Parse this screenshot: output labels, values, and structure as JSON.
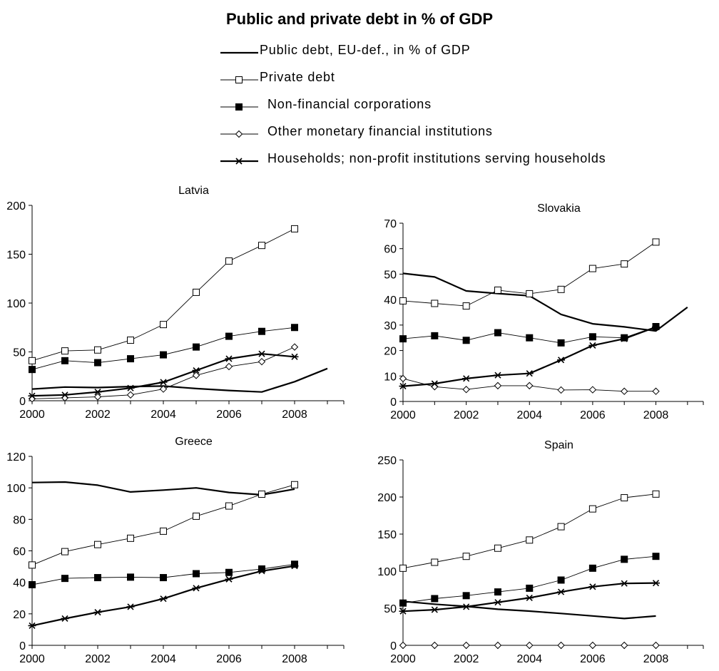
{
  "title": "Public and private debt in % of GDP",
  "legend": [
    {
      "key": "public",
      "label": "Public debt, EU-def.,  in % of GDP",
      "marker": "none"
    },
    {
      "key": "private",
      "label": "Private debt",
      "marker": "open-square"
    },
    {
      "key": "nfc",
      "label": "Non-financial corporations",
      "marker": "filled-square"
    },
    {
      "key": "omfi",
      "label": "Other monetary financial institutions",
      "marker": "open-diamond"
    },
    {
      "key": "hh",
      "label": "Households; non-profit institutions serving households",
      "marker": "star"
    }
  ],
  "colors": {
    "line": "#000000",
    "background": "#ffffff"
  },
  "chart_data": [
    {
      "type": "line",
      "title": "Latvia",
      "xlabel": "",
      "ylabel": "",
      "xlim": [
        2000,
        2009.5
      ],
      "ylim": [
        0,
        200
      ],
      "yticks": [
        0,
        50,
        100,
        150,
        200
      ],
      "xticks": [
        2000,
        2002,
        2004,
        2006,
        2008
      ],
      "grid": false,
      "series": [
        {
          "key": "public",
          "x": [
            2000,
            2001,
            2002,
            2003,
            2004,
            2005,
            2006,
            2007,
            2008,
            2009
          ],
          "values": [
            12,
            14,
            13.5,
            14.5,
            15,
            12.5,
            10.5,
            9,
            19.5,
            33
          ]
        },
        {
          "key": "private",
          "x": [
            2000,
            2001,
            2002,
            2003,
            2004,
            2005,
            2006,
            2007,
            2008
          ],
          "values": [
            41,
            51,
            52,
            62,
            78,
            111,
            143,
            159,
            176
          ]
        },
        {
          "key": "nfc",
          "x": [
            2000,
            2001,
            2002,
            2003,
            2004,
            2005,
            2006,
            2007,
            2008
          ],
          "values": [
            32,
            41,
            39,
            43,
            47,
            55,
            66,
            71,
            75
          ]
        },
        {
          "key": "omfi",
          "x": [
            2000,
            2001,
            2002,
            2003,
            2004,
            2005,
            2006,
            2007,
            2008
          ],
          "values": [
            2,
            3,
            4,
            6,
            12,
            26,
            35,
            40,
            55
          ]
        },
        {
          "key": "hh",
          "x": [
            2000,
            2001,
            2002,
            2003,
            2004,
            2005,
            2006,
            2007,
            2008
          ],
          "values": [
            5,
            6,
            9,
            13,
            19,
            31,
            43,
            48,
            45
          ]
        }
      ]
    },
    {
      "type": "line",
      "title": "Slovakia",
      "xlabel": "",
      "ylabel": "",
      "xlim": [
        2000,
        2009.5
      ],
      "ylim": [
        0,
        70
      ],
      "yticks": [
        0,
        10,
        20,
        30,
        40,
        50,
        60,
        70
      ],
      "xticks": [
        2000,
        2002,
        2004,
        2006,
        2008
      ],
      "grid": false,
      "series": [
        {
          "key": "public",
          "x": [
            2000,
            2001,
            2002,
            2003,
            2004,
            2005,
            2006,
            2007,
            2008,
            2009
          ],
          "values": [
            50.3,
            48.9,
            43.4,
            42.4,
            41.5,
            34.2,
            30.5,
            29.3,
            27.7,
            37
          ]
        },
        {
          "key": "private",
          "x": [
            2000,
            2001,
            2002,
            2003,
            2004,
            2005,
            2006,
            2007,
            2008
          ],
          "values": [
            39.5,
            38.5,
            37.5,
            43.7,
            42.3,
            44,
            52.2,
            54,
            62.6
          ]
        },
        {
          "key": "nfc",
          "x": [
            2000,
            2001,
            2002,
            2003,
            2004,
            2005,
            2006,
            2007,
            2008
          ],
          "values": [
            24.6,
            25.8,
            24,
            27,
            25,
            23,
            25.4,
            25,
            29.4
          ]
        },
        {
          "key": "omfi",
          "x": [
            2000,
            2001,
            2002,
            2003,
            2004,
            2005,
            2006,
            2007,
            2008
          ],
          "values": [
            9,
            5.8,
            4.7,
            6.2,
            6.2,
            4.5,
            4.6,
            4,
            4
          ]
        },
        {
          "key": "hh",
          "x": [
            2000,
            2001,
            2002,
            2003,
            2004,
            2005,
            2006,
            2007,
            2008
          ],
          "values": [
            6,
            7,
            9,
            10.3,
            11,
            16.3,
            22,
            24.6,
            29.2
          ]
        }
      ]
    },
    {
      "type": "line",
      "title": "Greece",
      "xlabel": "",
      "ylabel": "",
      "xlim": [
        2000,
        2009.5
      ],
      "ylim": [
        0,
        120
      ],
      "yticks": [
        0,
        20,
        40,
        60,
        80,
        100,
        120
      ],
      "xticks": [
        2000,
        2002,
        2004,
        2006,
        2008
      ],
      "grid": false,
      "series": [
        {
          "key": "public",
          "x": [
            2000,
            2001,
            2002,
            2003,
            2004,
            2005,
            2006,
            2007,
            2008
          ],
          "values": [
            103.4,
            103.7,
            101.7,
            97.4,
            98.6,
            100,
            97.1,
            95.6,
            99.2
          ]
        },
        {
          "key": "private",
          "x": [
            2000,
            2001,
            2002,
            2003,
            2004,
            2005,
            2006,
            2007,
            2008
          ],
          "values": [
            51,
            59.5,
            64,
            68,
            72.5,
            82,
            88.5,
            96,
            102
          ]
        },
        {
          "key": "nfc",
          "x": [
            2000,
            2001,
            2002,
            2003,
            2004,
            2005,
            2006,
            2007,
            2008
          ],
          "values": [
            38.5,
            42.5,
            43,
            43.3,
            43,
            45.5,
            46.3,
            48.5,
            51.5
          ]
        },
        {
          "key": "hh",
          "x": [
            2000,
            2001,
            2002,
            2003,
            2004,
            2005,
            2006,
            2007,
            2008
          ],
          "values": [
            12.5,
            17,
            21,
            24.5,
            29.6,
            36.3,
            42,
            47.2,
            50.4
          ]
        }
      ]
    },
    {
      "type": "line",
      "title": "Spain",
      "xlabel": "",
      "ylabel": "",
      "xlim": [
        2000,
        2009.5
      ],
      "ylim": [
        0,
        250
      ],
      "yticks": [
        0,
        50,
        100,
        150,
        200,
        250
      ],
      "xticks": [
        2000,
        2002,
        2004,
        2006,
        2008
      ],
      "grid": false,
      "series": [
        {
          "key": "public",
          "x": [
            2000,
            2001,
            2002,
            2003,
            2004,
            2005,
            2006,
            2007,
            2008
          ],
          "values": [
            59.3,
            55.5,
            52.5,
            48.7,
            46.2,
            43,
            39.6,
            36.2,
            39.5
          ]
        },
        {
          "key": "private",
          "x": [
            2000,
            2001,
            2002,
            2003,
            2004,
            2005,
            2006,
            2007,
            2008
          ],
          "values": [
            104,
            112,
            120,
            131,
            142,
            160,
            184,
            199,
            204
          ]
        },
        {
          "key": "nfc",
          "x": [
            2000,
            2001,
            2002,
            2003,
            2004,
            2005,
            2006,
            2007,
            2008
          ],
          "values": [
            57,
            63,
            67,
            72,
            77,
            88,
            104,
            116,
            120
          ]
        },
        {
          "key": "omfi",
          "x": [
            2000,
            2001,
            2002,
            2003,
            2004,
            2005,
            2006,
            2007,
            2008
          ],
          "values": [
            0,
            0,
            0,
            0,
            0,
            0,
            0,
            0,
            0
          ]
        },
        {
          "key": "hh",
          "x": [
            2000,
            2001,
            2002,
            2003,
            2004,
            2005,
            2006,
            2007,
            2008
          ],
          "values": [
            46,
            48,
            52,
            58,
            64,
            72,
            79,
            83.5,
            84
          ]
        }
      ]
    }
  ]
}
